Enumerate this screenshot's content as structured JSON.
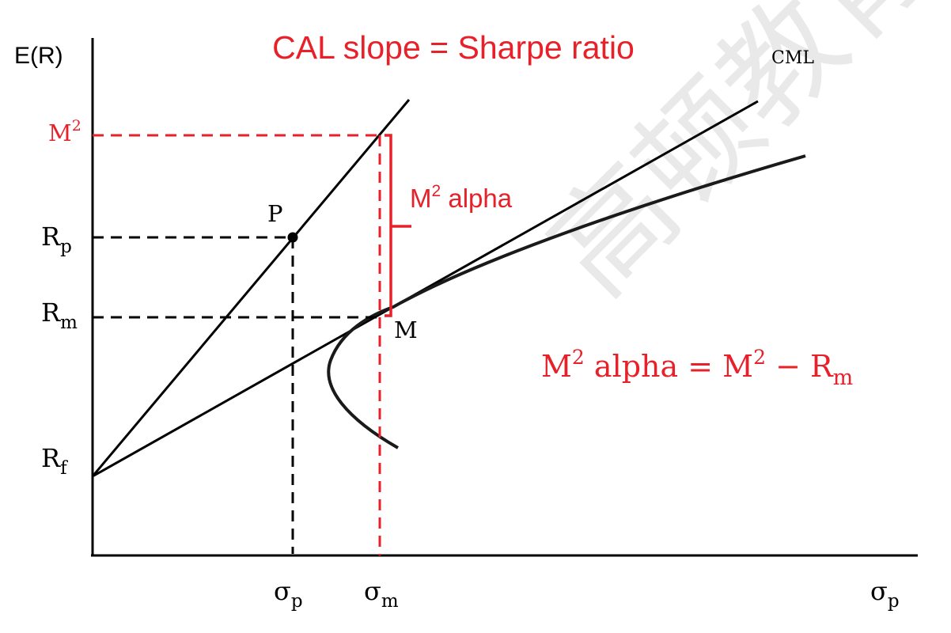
{
  "colors": {
    "accent_red": "#e8202a",
    "ink": "#000000",
    "watermark": "#e6e6e6"
  },
  "title": "CAL slope = Sharpe ratio",
  "axes": {
    "y_label": "E(R)",
    "x_label": "σ",
    "x_label_sub": "p"
  },
  "y_ticks": {
    "m2": {
      "base": "M",
      "sup": "2"
    },
    "rp": {
      "base": "R",
      "sub": "p"
    },
    "rm": {
      "base": "R",
      "sub": "m"
    },
    "rf": {
      "base": "R",
      "sub": "f"
    }
  },
  "x_ticks": {
    "sigma_p": {
      "base": "σ",
      "sub": "p"
    },
    "sigma_m": {
      "base": "σ",
      "sub": "m"
    }
  },
  "points": {
    "p": "P",
    "m": "M"
  },
  "lines": {
    "cml": "CML"
  },
  "annotations": {
    "m2_alpha": {
      "base": "M",
      "sup": "2",
      "rest": " alpha"
    },
    "formula": {
      "lhs_base": "M",
      "lhs_sup": "2",
      "lhs_rest": " alpha = ",
      "mid_base": "M",
      "mid_sup": "2",
      "minus": " − ",
      "rhs_base": "R",
      "rhs_sub": "m"
    }
  },
  "watermark_text": "高顿教育"
}
